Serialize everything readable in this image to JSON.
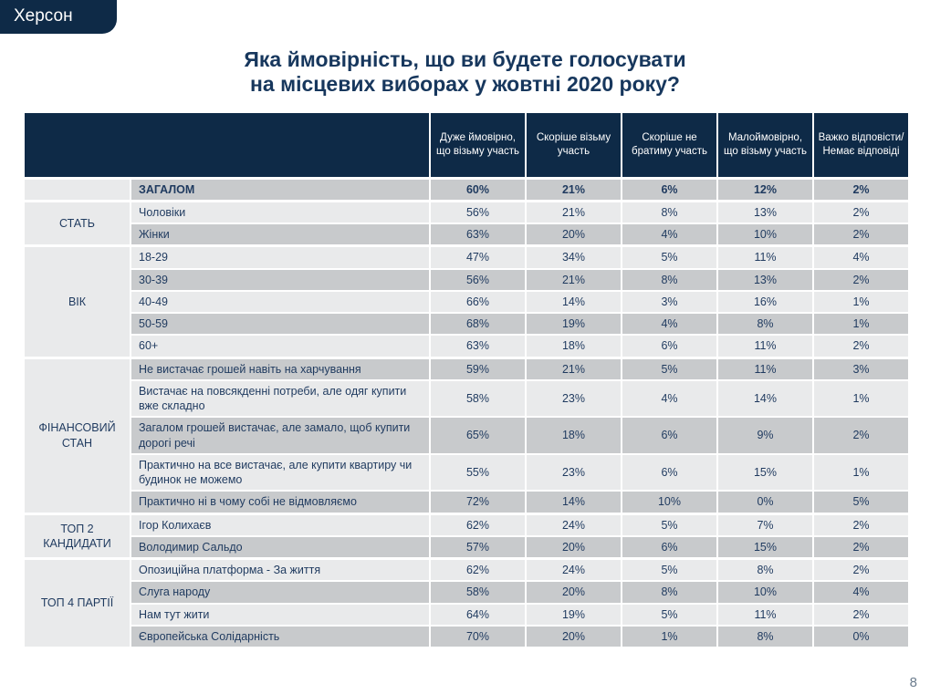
{
  "page": {
    "badge": "Херсон",
    "title_line1": "Яка ймовірність, що ви будете голосувати",
    "title_line2": "на місцевих виборах у жовтні 2020 року?",
    "page_number": "8"
  },
  "colors": {
    "header_navy": "#0e2a47",
    "title_text": "#17375d",
    "cell_text": "#1f3a5f",
    "row_dark": "#c8cacc",
    "row_light": "#e9eaeb",
    "category_bg": "#e9eaeb"
  },
  "table": {
    "columns": [
      "Дуже ймовірно, що візьму участь",
      "Скоріше візьму участь",
      "Скоріше не братиму участь",
      "Малоймовірно, що візьму участь",
      "Важко відповісти/ Немає відповіді"
    ],
    "sections": [
      {
        "category": "",
        "rows": [
          {
            "label": "ЗАГАЛОМ",
            "bold": true,
            "values": [
              "60%",
              "21%",
              "6%",
              "12%",
              "2%"
            ]
          }
        ]
      },
      {
        "category": "СТАТЬ",
        "rows": [
          {
            "label": "Чоловіки",
            "values": [
              "56%",
              "21%",
              "8%",
              "13%",
              "2%"
            ]
          },
          {
            "label": "Жінки",
            "values": [
              "63%",
              "20%",
              "4%",
              "10%",
              "2%"
            ]
          }
        ]
      },
      {
        "category": "ВІК",
        "rows": [
          {
            "label": "18-29",
            "values": [
              "47%",
              "34%",
              "5%",
              "11%",
              "4%"
            ]
          },
          {
            "label": "30-39",
            "values": [
              "56%",
              "21%",
              "8%",
              "13%",
              "2%"
            ]
          },
          {
            "label": "40-49",
            "values": [
              "66%",
              "14%",
              "3%",
              "16%",
              "1%"
            ]
          },
          {
            "label": "50-59",
            "values": [
              "68%",
              "19%",
              "4%",
              "8%",
              "1%"
            ]
          },
          {
            "label": "60+",
            "values": [
              "63%",
              "18%",
              "6%",
              "11%",
              "2%"
            ]
          }
        ]
      },
      {
        "category": "ФІНАНСОВИЙ СТАН",
        "rows": [
          {
            "label": "Не вистачає грошей навіть на харчування",
            "values": [
              "59%",
              "21%",
              "5%",
              "11%",
              "3%"
            ]
          },
          {
            "label": "Вистачає на повсякденні потреби, але одяг купити вже складно",
            "values": [
              "58%",
              "23%",
              "4%",
              "14%",
              "1%"
            ]
          },
          {
            "label": "Загалом грошей вистачає, але замало, щоб купити дорогі речі",
            "values": [
              "65%",
              "18%",
              "6%",
              "9%",
              "2%"
            ]
          },
          {
            "label": "Практично на все вистачає, але купити квартиру чи будинок не можемо",
            "values": [
              "55%",
              "23%",
              "6%",
              "15%",
              "1%"
            ]
          },
          {
            "label": "Практично ні в чому собі не відмовляємо",
            "values": [
              "72%",
              "14%",
              "10%",
              "0%",
              "5%"
            ]
          }
        ]
      },
      {
        "category": "ТОП 2 КАНДИДАТИ",
        "rows": [
          {
            "label": "Ігор Колихаєв",
            "values": [
              "62%",
              "24%",
              "5%",
              "7%",
              "2%"
            ]
          },
          {
            "label": "Володимир Сальдо",
            "values": [
              "57%",
              "20%",
              "6%",
              "15%",
              "2%"
            ]
          }
        ]
      },
      {
        "category": "ТОП 4 ПАРТІЇ",
        "rows": [
          {
            "label": "Опозиційна платформа - За життя",
            "values": [
              "62%",
              "24%",
              "5%",
              "8%",
              "2%"
            ]
          },
          {
            "label": "Слуга народу",
            "values": [
              "58%",
              "20%",
              "8%",
              "10%",
              "4%"
            ]
          },
          {
            "label": "Нам тут жити",
            "values": [
              "64%",
              "19%",
              "5%",
              "11%",
              "2%"
            ]
          },
          {
            "label": "Європейська Солідарність",
            "values": [
              "70%",
              "20%",
              "1%",
              "8%",
              "0%"
            ]
          }
        ]
      }
    ]
  }
}
